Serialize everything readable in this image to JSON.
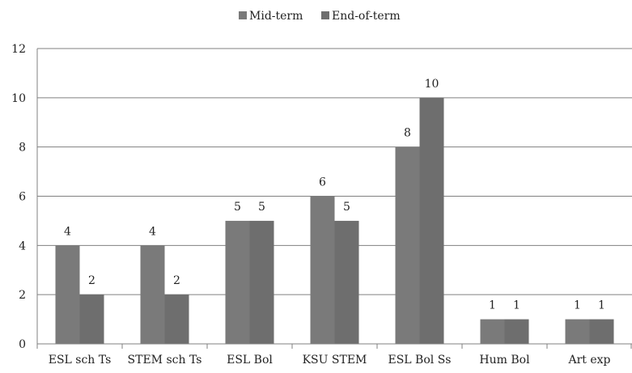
{
  "chart_data": {
    "type": "bar",
    "title": "",
    "xlabel": "",
    "ylabel": "",
    "categories": [
      "ESL sch Ts",
      "STEM sch Ts",
      "ESL Bol",
      "KSU STEM",
      "ESL Bol Ss",
      "Hum Bol",
      "Art exp"
    ],
    "series": [
      {
        "name": "Mid-term",
        "values": [
          4,
          4,
          5,
          6,
          8,
          1,
          1
        ],
        "color": "#7a7a7a"
      },
      {
        "name": "End-of-term",
        "values": [
          2,
          2,
          5,
          5,
          10,
          1,
          1
        ],
        "color": "#6e6e6e"
      }
    ],
    "ylim": [
      0,
      12
    ],
    "yticks": [
      "0",
      "2",
      "4",
      "6",
      "8",
      "10",
      "12"
    ],
    "data_labels": true,
    "grid": true,
    "legend_position": "top-center"
  },
  "colors": {
    "gridline": "#808080",
    "axis": "#808080",
    "text": "#222222"
  }
}
